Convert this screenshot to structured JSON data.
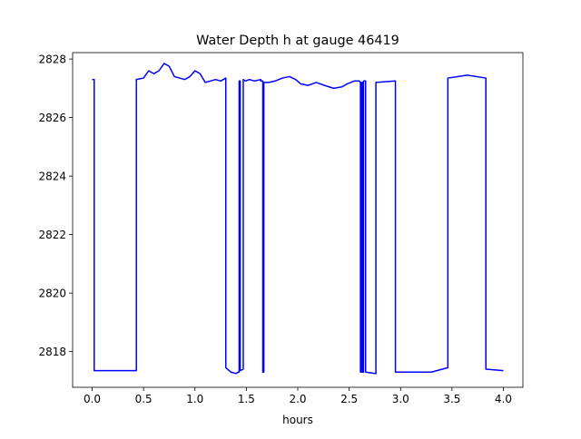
{
  "chart_data": {
    "type": "line",
    "title": "Water Depth h at gauge 46419",
    "xlabel": "hours",
    "ylabel": "",
    "xlim": [
      -0.19,
      4.19
    ],
    "ylim": [
      2816.78,
      2828.22
    ],
    "xticks": [
      0.0,
      0.5,
      1.0,
      1.5,
      2.0,
      2.5,
      3.0,
      3.5,
      4.0
    ],
    "xtick_labels": [
      "0.0",
      "0.5",
      "1.0",
      "1.5",
      "2.0",
      "2.5",
      "3.0",
      "3.5",
      "4.0"
    ],
    "yticks": [
      2818,
      2820,
      2822,
      2824,
      2826,
      2828
    ],
    "ytick_labels": [
      "2818",
      "2820",
      "2822",
      "2824",
      "2826",
      "2828"
    ],
    "grid": false,
    "legend": "none",
    "series": [
      {
        "color": "#0000ff",
        "x": [
          0.0,
          0.02,
          0.02,
          0.43,
          0.43,
          0.5,
          0.55,
          0.6,
          0.65,
          0.7,
          0.75,
          0.8,
          0.85,
          0.9,
          0.95,
          1.0,
          1.05,
          1.1,
          1.15,
          1.2,
          1.25,
          1.3,
          1.3,
          1.35,
          1.4,
          1.42,
          1.43,
          1.43,
          1.44,
          1.44,
          1.47,
          1.47,
          1.49,
          1.49,
          1.53,
          1.58,
          1.64,
          1.64,
          1.66,
          1.66,
          1.67,
          1.67,
          1.72,
          1.78,
          1.85,
          1.92,
          1.98,
          2.03,
          2.1,
          2.18,
          2.26,
          2.35,
          2.43,
          2.48,
          2.55,
          2.6,
          2.61,
          2.61,
          2.62,
          2.62,
          2.63,
          2.63,
          2.64,
          2.64,
          2.66,
          2.66,
          2.76,
          2.76,
          2.95,
          2.95,
          3.1,
          3.3,
          3.46,
          3.46,
          3.65,
          3.83,
          3.83,
          4.0
        ],
        "values": [
          2827.3,
          2827.3,
          2817.35,
          2817.35,
          2827.3,
          2827.35,
          2827.6,
          2827.5,
          2827.6,
          2827.85,
          2827.75,
          2827.4,
          2827.35,
          2827.3,
          2827.4,
          2827.6,
          2827.5,
          2827.2,
          2827.25,
          2827.3,
          2827.25,
          2827.35,
          2817.45,
          2817.3,
          2817.25,
          2817.3,
          2817.3,
          2827.25,
          2827.25,
          2817.35,
          2817.4,
          2827.3,
          2827.25,
          2827.25,
          2827.3,
          2827.25,
          2827.3,
          2827.25,
          2827.25,
          2817.3,
          2817.3,
          2827.2,
          2827.2,
          2827.25,
          2827.35,
          2827.4,
          2827.3,
          2827.15,
          2827.1,
          2827.2,
          2827.1,
          2827.0,
          2827.05,
          2827.15,
          2827.25,
          2827.25,
          2827.2,
          2817.3,
          2817.3,
          2827.2,
          2827.2,
          2817.3,
          2817.3,
          2827.25,
          2827.25,
          2817.3,
          2817.25,
          2827.2,
          2827.25,
          2817.3,
          2817.3,
          2817.3,
          2817.45,
          2827.35,
          2827.45,
          2827.35,
          2817.4,
          2817.35
        ]
      }
    ]
  }
}
